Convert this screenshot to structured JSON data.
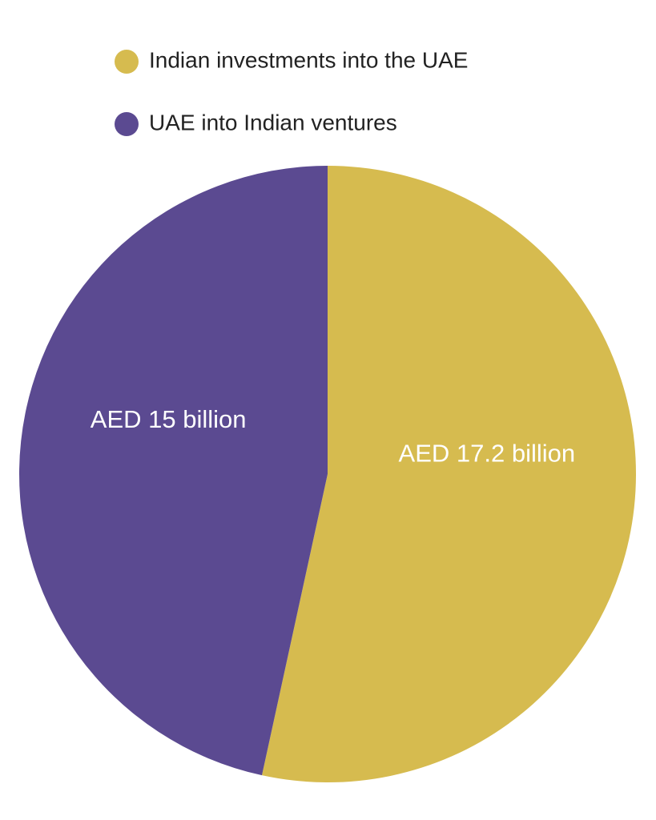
{
  "chart_data": {
    "type": "pie",
    "categories": [
      "Indian investments into the UAE",
      "UAE into Indian ventures"
    ],
    "values": [
      17.2,
      15
    ],
    "value_labels": [
      "AED 17.2 billion",
      "AED 15 billion"
    ],
    "colors": [
      "#d6bb4f",
      "#5b4a91"
    ]
  }
}
